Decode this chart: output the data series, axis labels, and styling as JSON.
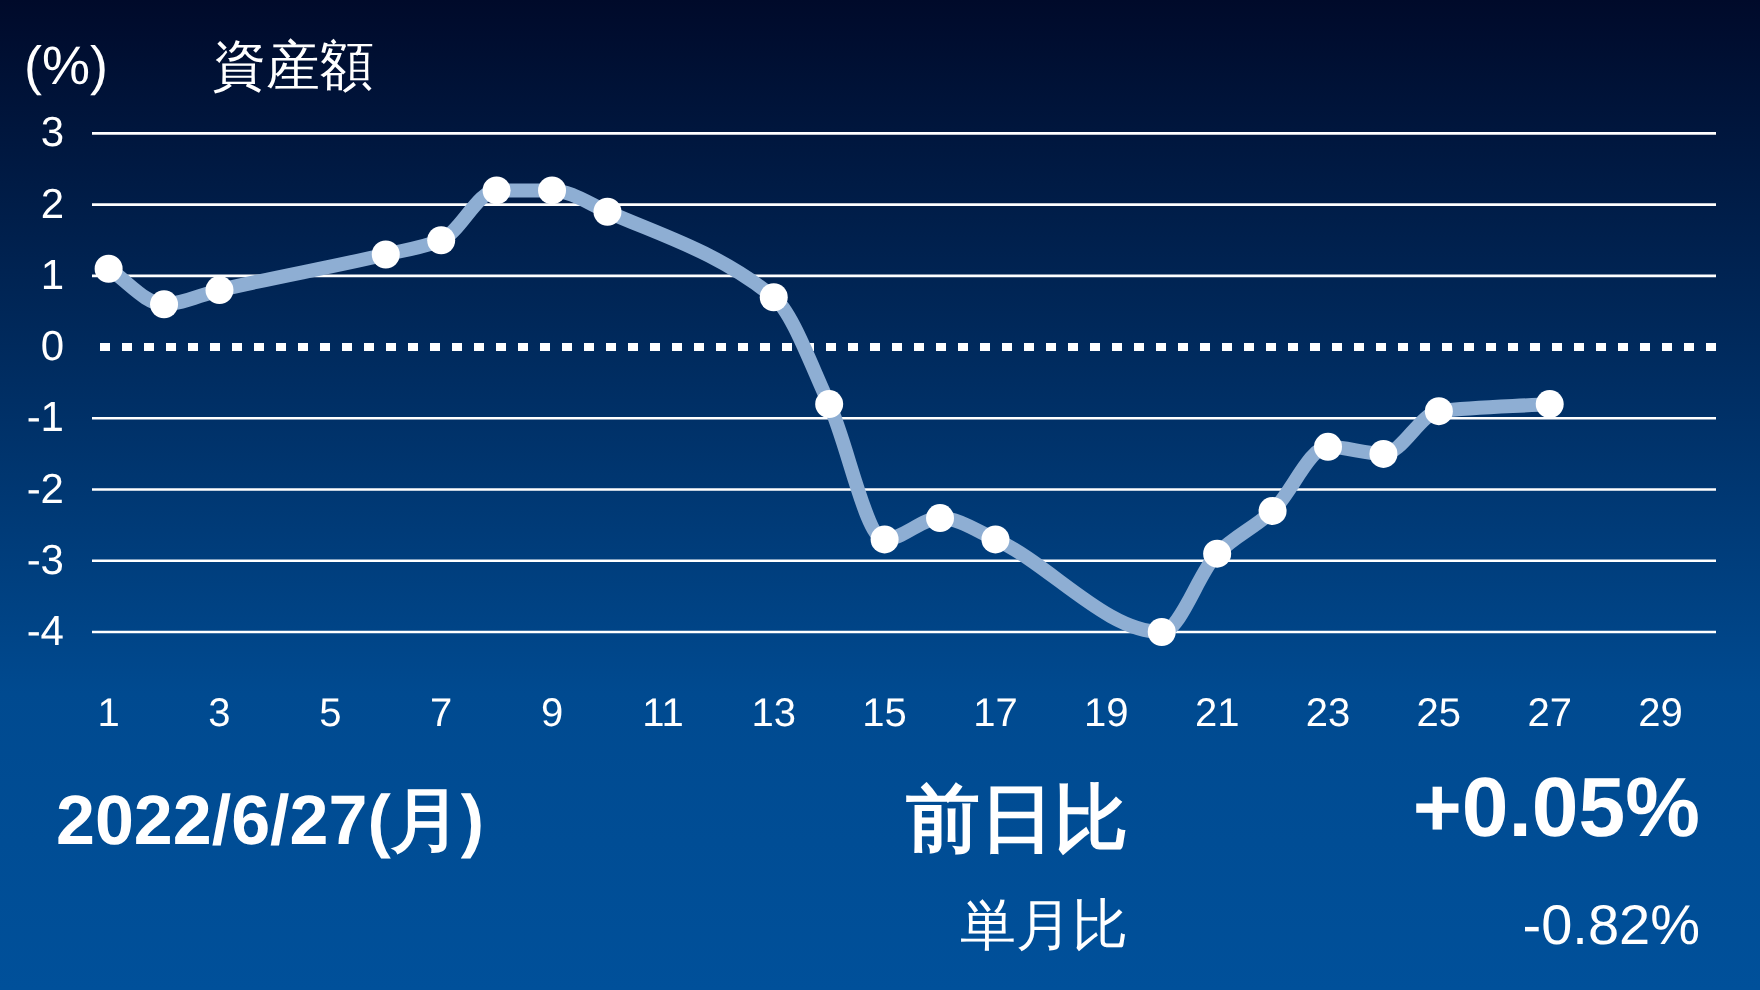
{
  "chart_data": {
    "type": "line",
    "title": "資産額",
    "ylabel": "(%)",
    "x": [
      1,
      2,
      3,
      6,
      7,
      8,
      9,
      10,
      13,
      14,
      15,
      16,
      17,
      20,
      21,
      22,
      23,
      24,
      25,
      27
    ],
    "series": [
      {
        "color": "#8eaed3",
        "values": [
          1.1,
          0.6,
          0.8,
          1.3,
          1.5,
          2.2,
          2.2,
          1.9,
          0.7,
          -0.8,
          -2.7,
          -2.4,
          -2.7,
          -4.0,
          -2.9,
          -2.3,
          -1.4,
          -1.5,
          -0.9,
          -0.8
        ]
      }
    ],
    "xlim": [
      0.7,
      30
    ],
    "ylim": [
      -4,
      3
    ],
    "xticks": [
      1,
      3,
      5,
      7,
      9,
      11,
      13,
      15,
      17,
      19,
      21,
      23,
      25,
      27,
      29
    ],
    "yticks": [
      -4,
      -3,
      -2,
      -1,
      0,
      1,
      2,
      3
    ],
    "grid": "y",
    "marker": "circle",
    "line_style": "solid",
    "ref_lines": [
      {
        "axis": "y",
        "value": 0,
        "color": "#ffffff",
        "line_style": "dotted"
      }
    ],
    "annotations": [
      "2022/6/27(月)",
      "前日比",
      "+0.05%",
      "単月比",
      "-0.82%"
    ]
  }
}
